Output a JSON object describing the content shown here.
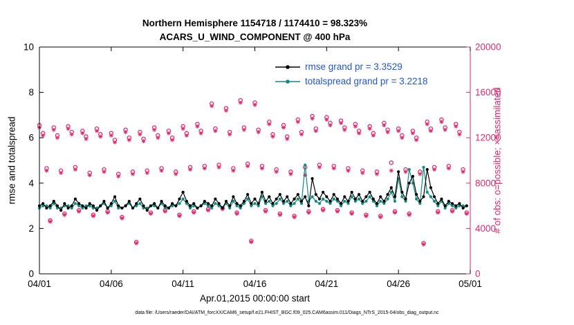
{
  "caption": "data file: /Users/raeder/DAI/ATM_forcXX/CAM6_setup/f.e21.FHIST_BGC.f09_025.CAM6assim.011/Diags_NTrS_2015-04/obs_diag_output.nc",
  "colors": {
    "pink": "#e12a6e",
    "teal": "#0f8b80",
    "black": "#000000",
    "legend_text": "#2255cc"
  },
  "chart_data": {
    "type": "line",
    "title_line1": "Northern Hemisphere 1154718 / 1174410 = 98.323%",
    "title_line2": "ACARS_U_WIND_COMPONENT @ 400 hPa",
    "xlabel": "Apr.01,2015 00:00:00 start",
    "ylabel_left": "rmse and totalspread",
    "ylabel_right": "# of obs: o=possible; ×=assimilated",
    "grid": false,
    "legend_position": "top-center-inside",
    "ylim_left": [
      0,
      10
    ],
    "left_ticks": [
      0,
      2,
      4,
      6,
      8,
      10
    ],
    "ylim_right": [
      0,
      20000
    ],
    "right_ticks": [
      0,
      4000,
      8000,
      12000,
      16000,
      20000
    ],
    "x_range_days": 30,
    "x_step_days": 0.25,
    "x_ticks": [
      {
        "day": 0,
        "label": "04/01"
      },
      {
        "day": 5,
        "label": "04/06"
      },
      {
        "day": 10,
        "label": "04/11"
      },
      {
        "day": 15,
        "label": "04/16"
      },
      {
        "day": 20,
        "label": "04/21"
      },
      {
        "day": 25,
        "label": "04/26"
      },
      {
        "day": 30,
        "label": "05/01"
      }
    ],
    "legend": [
      {
        "label": "rmse grand pr = 3.3529",
        "series": "rmse"
      },
      {
        "label": "totalspread grand pr = 3.2218",
        "series": "totalspread"
      }
    ],
    "stats": {
      "rmse_grand_prior": 3.3529,
      "totalspread_grand_prior": 3.2218,
      "obs_possible_total": 1174410,
      "obs_assimilated_total": 1154718,
      "assimilated_percent": 98.323
    },
    "series": [
      {
        "name": "rmse",
        "axis": "left",
        "marker": "filled-dot",
        "values": [
          3.0,
          3.1,
          2.9,
          3.0,
          3.2,
          3.0,
          2.8,
          3.1,
          2.9,
          3.0,
          3.3,
          3.1,
          3.0,
          2.9,
          3.1,
          3.0,
          2.8,
          3.0,
          3.2,
          2.9,
          3.1,
          3.4,
          3.0,
          2.9,
          3.0,
          3.2,
          2.9,
          3.1,
          3.3,
          3.0,
          2.8,
          3.0,
          3.1,
          2.9,
          3.2,
          3.0,
          2.9,
          3.1,
          3.0,
          3.3,
          3.6,
          3.2,
          3.0,
          3.1,
          2.9,
          3.0,
          3.2,
          3.1,
          3.0,
          3.3,
          3.1,
          2.9,
          3.2,
          3.0,
          3.4,
          3.1,
          3.0,
          3.2,
          3.5,
          3.1,
          3.3,
          3.1,
          3.6,
          3.2,
          3.4,
          3.1,
          3.3,
          3.5,
          3.2,
          3.4,
          3.1,
          3.3,
          3.5,
          3.2,
          3.4,
          3.0,
          4.2,
          3.5,
          3.3,
          3.6,
          3.4,
          3.2,
          3.5,
          3.3,
          3.1,
          3.4,
          3.2,
          3.6,
          3.3,
          3.5,
          3.2,
          3.4,
          3.6,
          3.3,
          3.1,
          3.4,
          3.2,
          3.5,
          3.8,
          3.4,
          4.5,
          3.6,
          3.3,
          4.0,
          4.3,
          3.5,
          3.2,
          3.4,
          4.6,
          3.8,
          3.4,
          3.1,
          3.3,
          3.0,
          3.2,
          3.1,
          3.0,
          3.1,
          2.9,
          3.0
        ]
      },
      {
        "name": "totalspread",
        "axis": "left",
        "marker": "filled-dot",
        "values": [
          2.9,
          3.0,
          3.0,
          2.9,
          3.1,
          2.9,
          2.9,
          3.0,
          3.0,
          2.9,
          3.1,
          3.0,
          2.9,
          3.0,
          3.0,
          2.9,
          2.9,
          3.0,
          3.1,
          2.9,
          3.0,
          3.2,
          2.9,
          2.9,
          3.0,
          3.1,
          2.9,
          3.0,
          3.1,
          2.9,
          2.9,
          3.0,
          3.0,
          2.9,
          3.1,
          2.9,
          2.9,
          3.0,
          3.0,
          3.1,
          3.3,
          3.1,
          2.9,
          3.0,
          2.9,
          3.0,
          3.1,
          3.0,
          2.9,
          3.1,
          3.0,
          2.9,
          3.1,
          2.9,
          3.2,
          3.0,
          2.9,
          3.1,
          3.3,
          3.0,
          3.1,
          3.0,
          3.4,
          3.1,
          3.2,
          3.0,
          3.1,
          3.3,
          3.1,
          3.2,
          3.0,
          3.1,
          3.3,
          3.1,
          4.8,
          3.2,
          3.4,
          3.2,
          3.1,
          3.3,
          3.2,
          3.1,
          3.3,
          3.2,
          3.0,
          3.2,
          3.1,
          3.4,
          3.2,
          3.3,
          3.1,
          3.2,
          3.4,
          3.2,
          3.0,
          3.2,
          3.1,
          3.3,
          3.6,
          3.2,
          4.2,
          3.4,
          3.2,
          4.6,
          4.0,
          3.3,
          3.1,
          4.7,
          3.6,
          3.4,
          3.2,
          3.0,
          3.2,
          2.9,
          3.1,
          3.0,
          2.9,
          3.0,
          3.0,
          3.0
        ]
      },
      {
        "name": "possible",
        "axis": "right",
        "marker": "open-circle",
        "values": [
          13100,
          12400,
          9300,
          4700,
          12900,
          12200,
          9100,
          5300,
          13000,
          12500,
          9400,
          5600,
          12600,
          12100,
          8900,
          5200,
          12800,
          12300,
          9200,
          5500,
          12400,
          11800,
          8800,
          5000,
          12700,
          12000,
          9000,
          2800,
          12500,
          11900,
          9100,
          5400,
          12900,
          12200,
          9300,
          5600,
          12600,
          12000,
          9000,
          5200,
          13000,
          12400,
          9400,
          5500,
          13200,
          12600,
          9500,
          5700,
          15000,
          12800,
          9600,
          5800,
          14600,
          12500,
          9300,
          5400,
          15300,
          12900,
          9700,
          2900,
          15100,
          12700,
          9500,
          5600,
          13400,
          12300,
          9200,
          5300,
          13100,
          12100,
          9000,
          5100,
          13600,
          12500,
          9400,
          5500,
          13900,
          12800,
          9600,
          5700,
          13800,
          13300,
          9500,
          5600,
          13500,
          12900,
          9300,
          5400,
          13200,
          12600,
          9100,
          5200,
          13000,
          12400,
          9000,
          5100,
          13300,
          12700,
          9800,
          5500,
          12800,
          12200,
          9200,
          5300,
          12600,
          12000,
          9000,
          2700,
          13400,
          12800,
          9400,
          5500,
          13600,
          12900,
          9500,
          5600,
          13200,
          12500,
          9200,
          5400
        ]
      },
      {
        "name": "assimilated",
        "axis": "right",
        "marker": "asterisk",
        "values": [
          12900,
          12200,
          9100,
          4600,
          12700,
          12000,
          8900,
          5200,
          12800,
          12300,
          9200,
          5500,
          12400,
          11900,
          8700,
          5100,
          12600,
          12100,
          9000,
          5400,
          12200,
          11600,
          8600,
          4900,
          12500,
          11800,
          8800,
          2700,
          12300,
          11700,
          8900,
          5300,
          12700,
          12000,
          9100,
          5500,
          12400,
          11800,
          8800,
          5100,
          12800,
          12200,
          9200,
          5400,
          13000,
          12400,
          9300,
          5600,
          14800,
          12600,
          9400,
          5700,
          14400,
          12300,
          9100,
          5300,
          15100,
          12700,
          9500,
          2800,
          14900,
          12500,
          9300,
          5500,
          13200,
          12100,
          9000,
          5200,
          12900,
          11900,
          8800,
          5000,
          13400,
          12300,
          8700,
          5400,
          13700,
          12600,
          9400,
          5600,
          13600,
          13100,
          9300,
          5500,
          13300,
          12700,
          9100,
          5300,
          13000,
          12400,
          8900,
          5100,
          12800,
          12200,
          8800,
          5000,
          13100,
          12500,
          9100,
          5400,
          12600,
          12000,
          9000,
          5200,
          12400,
          11800,
          8800,
          2600,
          13200,
          12600,
          9200,
          5400,
          13400,
          12700,
          9300,
          5500,
          13000,
          12300,
          9000,
          5300
        ]
      }
    ]
  }
}
